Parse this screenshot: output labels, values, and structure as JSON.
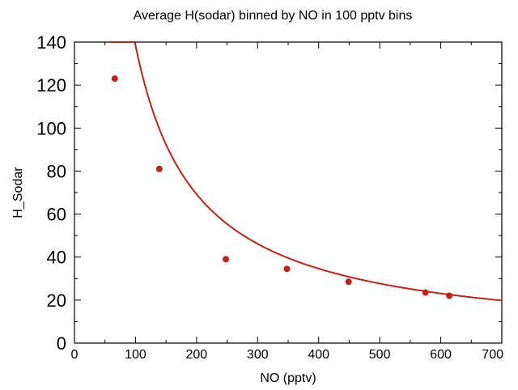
{
  "chart_data": {
    "type": "scatter",
    "subtitle": "Average H(sodar) binned by NO in 100 pptv bins",
    "xlabel": "NO (pptv)",
    "ylabel": "H_Sodar",
    "xlim": [
      0,
      700
    ],
    "ylim": [
      0,
      140
    ],
    "x_ticks": [
      0,
      100,
      200,
      300,
      400,
      500,
      600,
      700
    ],
    "y_ticks": [
      0,
      20,
      40,
      60,
      80,
      100,
      120,
      140
    ],
    "grid": false,
    "legend": "none",
    "series": [
      {
        "kind": "points",
        "color": "#c0231a",
        "points": [
          {
            "x": 66,
            "y": 123
          },
          {
            "x": 139,
            "y": 81
          },
          {
            "x": 248,
            "y": 39
          },
          {
            "x": 348,
            "y": 34.5
          },
          {
            "x": 449,
            "y": 28.5
          },
          {
            "x": 575,
            "y": 23.5
          },
          {
            "x": 614,
            "y": 22
          }
        ]
      },
      {
        "kind": "fit-curve",
        "color": "#c0231a",
        "model": "y = a / x",
        "a": 13850,
        "x_range": [
          57,
          700
        ]
      }
    ]
  }
}
